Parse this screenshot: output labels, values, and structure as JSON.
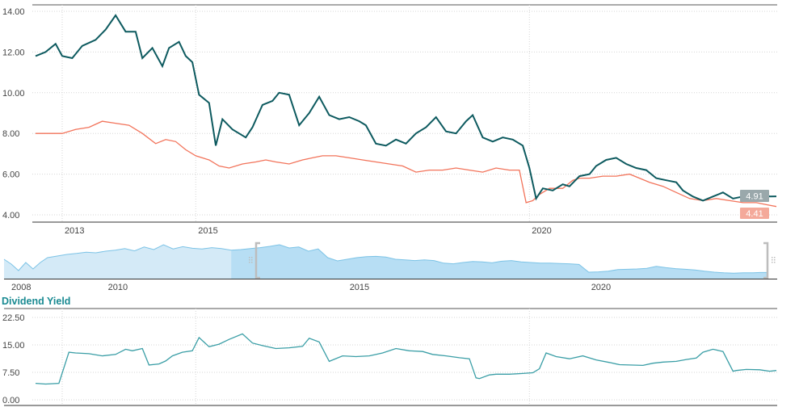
{
  "colors": {
    "price_line": "#0d5a5f",
    "fair_value_line": "#f2735a",
    "yield_line": "#3a9ea6",
    "yield_title": "#1a8a92",
    "navigator_light": "#d4eaf7",
    "navigator_selected": "#b7def4",
    "navigator_stroke": "#7cc3e6",
    "price_badge": "#9aa8ab",
    "fair_value_badge": "#f4a99a",
    "gridline": "#d6d6d6",
    "axis_text": "#444444"
  },
  "main_chart": {
    "y_ticks": [
      "14.00",
      "12.00",
      "10.00",
      "8.00",
      "6.00",
      "4.00"
    ],
    "x_ticks": [
      "2013",
      "2015",
      "2020"
    ],
    "last_price_label": "4.91",
    "last_fair_value_label": "4.41"
  },
  "navigator": {
    "x_ticks": [
      "2008",
      "2010",
      "2015",
      "2020"
    ]
  },
  "yield_panel": {
    "title": "Dividend Yield",
    "y_ticks": [
      "22.50",
      "15.00",
      "7.50",
      "0.00"
    ]
  },
  "chart_data": [
    {
      "type": "line",
      "title": "",
      "xlabel": "",
      "ylabel": "",
      "x_range": [
        2012.6,
        2023.7
      ],
      "ylim": [
        4.0,
        14.0
      ],
      "grid": true,
      "series": [
        {
          "x": [
            2012.6,
            2012.75,
            2012.9,
            2013.0,
            2013.15,
            2013.3,
            2013.5,
            2013.65,
            2013.8,
            2013.95,
            2014.1,
            2014.2,
            2014.35,
            2014.5,
            2014.6,
            2014.75,
            2014.85,
            2014.95,
            2015.05,
            2015.2,
            2015.3,
            2015.4,
            2015.55,
            2015.75,
            2015.85,
            2016.0,
            2016.15,
            2016.25,
            2016.4,
            2016.55,
            2016.7,
            2016.85,
            2017.0,
            2017.15,
            2017.3,
            2017.45,
            2017.55,
            2017.7,
            2017.85,
            2018.0,
            2018.15,
            2018.3,
            2018.45,
            2018.6,
            2018.75,
            2018.9,
            2019.05,
            2019.15,
            2019.3,
            2019.45,
            2019.6,
            2019.75,
            2019.9,
            2020.0,
            2020.1,
            2020.2,
            2020.35,
            2020.5,
            2020.6,
            2020.75,
            2020.9,
            2021.0,
            2021.15,
            2021.3,
            2021.45,
            2021.6,
            2021.75,
            2021.9,
            2022.05,
            2022.2,
            2022.3,
            2022.45,
            2022.6,
            2022.75,
            2022.9,
            2023.05,
            2023.2,
            2023.35,
            2023.5,
            2023.6,
            2023.7
          ],
          "values": [
            11.8,
            12.0,
            12.4,
            11.8,
            11.7,
            12.3,
            12.6,
            13.1,
            13.8,
            13.0,
            13.0,
            11.7,
            12.2,
            11.3,
            12.2,
            12.5,
            11.8,
            11.5,
            9.9,
            9.5,
            7.4,
            8.7,
            8.2,
            7.8,
            8.3,
            9.4,
            9.6,
            10.0,
            9.9,
            8.4,
            9.0,
            9.8,
            8.9,
            8.7,
            8.8,
            8.6,
            8.4,
            7.5,
            7.4,
            7.7,
            7.5,
            8.0,
            8.3,
            8.8,
            8.1,
            8.0,
            8.6,
            8.9,
            7.8,
            7.6,
            7.8,
            7.7,
            7.4,
            6.3,
            4.8,
            5.3,
            5.2,
            5.5,
            5.4,
            5.9,
            6.0,
            6.4,
            6.7,
            6.8,
            6.5,
            6.3,
            6.2,
            5.8,
            5.7,
            5.6,
            5.2,
            4.9,
            4.7,
            4.9,
            5.1,
            4.8,
            4.9,
            5.0,
            5.1,
            4.9,
            4.91
          ]
        },
        {
          "x": [
            2012.6,
            2012.8,
            2013.0,
            2013.2,
            2013.4,
            2013.6,
            2013.8,
            2014.0,
            2014.2,
            2014.4,
            2014.55,
            2014.7,
            2014.85,
            2015.0,
            2015.2,
            2015.35,
            2015.5,
            2015.7,
            2015.9,
            2016.05,
            2016.2,
            2016.4,
            2016.6,
            2016.75,
            2016.9,
            2017.1,
            2017.3,
            2017.5,
            2017.7,
            2017.9,
            2018.1,
            2018.3,
            2018.5,
            2018.7,
            2018.9,
            2019.1,
            2019.3,
            2019.5,
            2019.7,
            2019.85,
            2019.95,
            2020.05,
            2020.15,
            2020.3,
            2020.5,
            2020.65,
            2020.75,
            2020.9,
            2021.1,
            2021.3,
            2021.5,
            2021.65,
            2021.8,
            2022.0,
            2022.2,
            2022.4,
            2022.6,
            2022.8,
            2023.0,
            2023.2,
            2023.4,
            2023.55,
            2023.7
          ],
          "values": [
            8.0,
            8.0,
            8.0,
            8.2,
            8.3,
            8.6,
            8.5,
            8.4,
            8.0,
            7.5,
            7.7,
            7.6,
            7.2,
            6.9,
            6.7,
            6.4,
            6.3,
            6.5,
            6.6,
            6.7,
            6.6,
            6.5,
            6.7,
            6.8,
            6.9,
            6.9,
            6.8,
            6.7,
            6.6,
            6.5,
            6.4,
            6.1,
            6.2,
            6.2,
            6.3,
            6.2,
            6.1,
            6.3,
            6.2,
            6.2,
            4.6,
            4.7,
            5.0,
            5.3,
            5.3,
            5.7,
            5.8,
            5.8,
            5.9,
            5.9,
            6.0,
            5.8,
            5.6,
            5.4,
            5.1,
            4.8,
            4.7,
            4.8,
            4.7,
            4.6,
            4.6,
            4.5,
            4.41
          ]
        }
      ]
    },
    {
      "type": "area",
      "title": "",
      "x_range": [
        2007.9,
        2023.7
      ],
      "selected_range": [
        2012.6,
        2023.7
      ],
      "grid": false,
      "series": [
        {
          "x": [
            2007.9,
            2008.05,
            2008.2,
            2008.35,
            2008.5,
            2008.65,
            2008.8,
            2009.0,
            2009.2,
            2009.4,
            2009.6,
            2009.8,
            2010.0,
            2010.2,
            2010.4,
            2010.6,
            2010.8,
            2011.0,
            2011.2,
            2011.4,
            2011.6,
            2011.8,
            2012.0,
            2012.2,
            2012.4,
            2012.6,
            2012.8,
            2013.0,
            2013.2,
            2013.4,
            2013.6,
            2013.8,
            2014.0,
            2014.2,
            2014.4,
            2014.6,
            2014.8,
            2015.0,
            2015.2,
            2015.4,
            2015.6,
            2015.8,
            2016.0,
            2016.2,
            2016.4,
            2016.6,
            2016.8,
            2017.0,
            2017.2,
            2017.4,
            2017.6,
            2017.8,
            2018.0,
            2018.2,
            2018.4,
            2018.6,
            2018.8,
            2019.0,
            2019.2,
            2019.4,
            2019.6,
            2019.8,
            2020.0,
            2020.2,
            2020.4,
            2020.6,
            2020.8,
            2021.0,
            2021.2,
            2021.4,
            2021.6,
            2021.8,
            2022.0,
            2022.2,
            2022.4,
            2022.6,
            2022.8,
            2023.0,
            2023.2,
            2023.4,
            2023.55,
            2023.7
          ],
          "values": [
            9.0,
            7.5,
            5.5,
            8.0,
            6.0,
            8.0,
            9.5,
            10.0,
            10.5,
            10.8,
            11.2,
            11.0,
            11.5,
            11.8,
            12.3,
            11.6,
            12.8,
            12.0,
            13.5,
            12.2,
            12.9,
            12.4,
            12.2,
            12.6,
            12.3,
            11.8,
            12.0,
            12.3,
            12.6,
            13.0,
            13.5,
            12.5,
            12.8,
            11.5,
            12.2,
            9.5,
            8.5,
            9.0,
            9.5,
            9.8,
            9.9,
            9.7,
            9.0,
            8.8,
            8.6,
            8.8,
            8.6,
            7.8,
            7.6,
            8.0,
            8.3,
            8.2,
            7.9,
            8.4,
            8.6,
            8.2,
            8.0,
            7.8,
            7.8,
            7.7,
            7.6,
            7.4,
            5.0,
            5.1,
            5.3,
            5.8,
            5.9,
            6.0,
            6.2,
            6.8,
            6.4,
            6.1,
            5.9,
            5.7,
            5.3,
            5.0,
            4.8,
            4.7,
            4.8,
            4.8,
            4.9,
            4.91
          ]
        }
      ]
    },
    {
      "type": "line",
      "title": "Dividend Yield",
      "x_range": [
        2012.6,
        2023.7
      ],
      "ylim": [
        0,
        22.5
      ],
      "grid": true,
      "series": [
        {
          "x": [
            2012.6,
            2012.75,
            2012.95,
            2013.1,
            2013.2,
            2013.4,
            2013.6,
            2013.8,
            2013.95,
            2014.05,
            2014.2,
            2014.3,
            2014.45,
            2014.55,
            2014.65,
            2014.8,
            2014.95,
            2015.05,
            2015.2,
            2015.35,
            2015.5,
            2015.7,
            2015.85,
            2016.0,
            2016.2,
            2016.4,
            2016.6,
            2016.7,
            2016.85,
            2017.0,
            2017.2,
            2017.4,
            2017.6,
            2017.8,
            2018.0,
            2018.2,
            2018.4,
            2018.55,
            2018.75,
            2018.95,
            2019.1,
            2019.2,
            2019.25,
            2019.4,
            2019.5,
            2019.7,
            2019.9,
            2020.05,
            2020.15,
            2020.25,
            2020.4,
            2020.6,
            2020.8,
            2021.0,
            2021.2,
            2021.35,
            2021.5,
            2021.7,
            2021.85,
            2022.0,
            2022.2,
            2022.35,
            2022.5,
            2022.6,
            2022.75,
            2022.9,
            2023.05,
            2023.1,
            2023.25,
            2023.45,
            2023.6,
            2023.7
          ],
          "values": [
            4.5,
            4.3,
            4.5,
            13.0,
            12.8,
            12.6,
            12.0,
            12.4,
            13.8,
            13.4,
            14.0,
            9.5,
            9.8,
            10.6,
            12.0,
            13.0,
            13.4,
            17.0,
            14.5,
            15.2,
            16.5,
            18.0,
            15.5,
            14.8,
            14.0,
            14.2,
            14.6,
            16.8,
            15.8,
            10.5,
            12.0,
            11.8,
            12.0,
            12.8,
            14.0,
            13.4,
            13.2,
            12.4,
            12.0,
            11.5,
            11.2,
            6.0,
            5.8,
            6.8,
            7.0,
            7.0,
            7.2,
            7.4,
            8.5,
            12.8,
            11.8,
            11.2,
            12.0,
            10.9,
            10.2,
            9.6,
            9.5,
            9.4,
            10.0,
            10.3,
            10.5,
            11.0,
            11.4,
            13.0,
            13.8,
            13.2,
            7.8,
            8.0,
            8.3,
            8.2,
            7.8,
            8.0
          ]
        }
      ]
    }
  ]
}
